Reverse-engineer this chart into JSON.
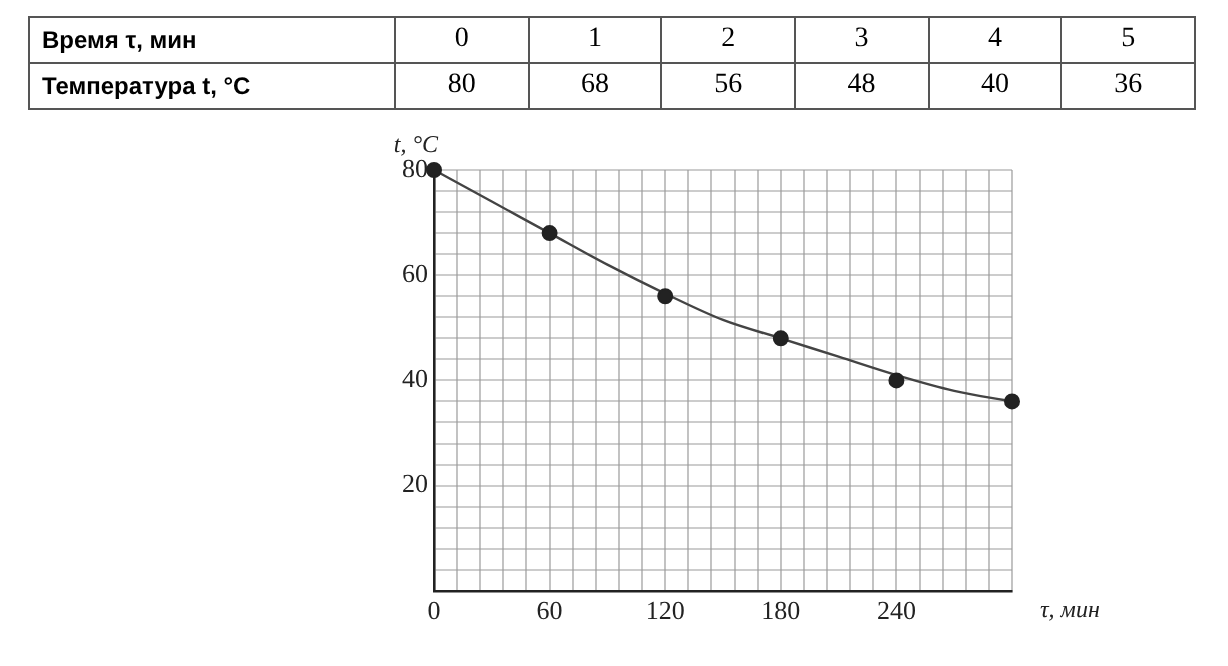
{
  "chart_data": {
    "type": "scatter",
    "xlabel": "τ, мин",
    "ylabel": "t, °C",
    "annotations": [
      "Время τ, мин",
      "Температура t, °C",
      "0",
      "1",
      "2",
      "3",
      "4",
      "5",
      "80",
      "68",
      "56",
      "48",
      "40",
      "36"
    ],
    "series": [
      {
        "color": "#222222",
        "marker": "circle",
        "x": [
          0,
          60,
          120,
          180,
          240,
          300
        ],
        "values": [
          80,
          68,
          56,
          48,
          40,
          36
        ]
      },
      {
        "type": "line",
        "color": "#444444",
        "marker": "none",
        "line_style": "solid",
        "x": [
          0,
          30,
          60,
          90,
          120,
          150,
          180,
          210,
          240,
          270,
          300
        ],
        "values": [
          80,
          74,
          68,
          62,
          56.5,
          51.5,
          48,
          44.5,
          41,
          38,
          36
        ]
      }
    ],
    "grid": true,
    "legend": false,
    "xlim": [
      0,
      300
    ],
    "ylim": [
      0,
      80
    ],
    "xticks": [
      {
        "value": 0,
        "label": "0"
      },
      {
        "value": 12,
        "label": null
      },
      {
        "value": 24,
        "label": null
      },
      {
        "value": 36,
        "label": null
      },
      {
        "value": 48,
        "label": null
      },
      60,
      {
        "value": 72,
        "label": null
      },
      {
        "value": 84,
        "label": null
      },
      {
        "value": 96,
        "label": null
      },
      {
        "value": 108,
        "label": null
      },
      120,
      {
        "value": 132,
        "label": null
      },
      {
        "value": 144,
        "label": null
      },
      {
        "value": 156,
        "label": null
      },
      {
        "value": 168,
        "label": null
      },
      180,
      {
        "value": 192,
        "label": null
      },
      {
        "value": 204,
        "label": null
      },
      {
        "value": 216,
        "label": null
      },
      {
        "value": 228,
        "label": null
      },
      240,
      {
        "value": 252,
        "label": null
      },
      {
        "value": 264,
        "label": null
      },
      {
        "value": 276,
        "label": null
      },
      {
        "value": 288,
        "label": null
      },
      {
        "value": 300,
        "label": null
      }
    ],
    "yticks": [
      {
        "value": 0,
        "label": null
      },
      {
        "value": 4,
        "label": null
      },
      {
        "value": 8,
        "label": null
      },
      {
        "value": 12,
        "label": null
      },
      {
        "value": 16,
        "label": null
      },
      20,
      {
        "value": 24,
        "label": null
      },
      {
        "value": 28,
        "label": null
      },
      {
        "value": 32,
        "label": null
      },
      {
        "value": 36,
        "label": null
      },
      40,
      {
        "value": 44,
        "label": null
      },
      {
        "value": 48,
        "label": null
      },
      {
        "value": 52,
        "label": null
      },
      {
        "value": 56,
        "label": null
      },
      60,
      {
        "value": 64,
        "label": null
      },
      {
        "value": 68,
        "label": null
      },
      {
        "value": 72,
        "label": null
      },
      {
        "value": 76,
        "label": null
      },
      80
    ]
  }
}
